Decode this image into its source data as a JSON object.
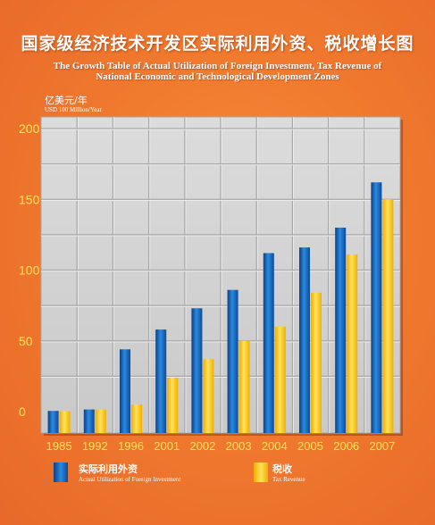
{
  "header": {
    "title_cn": "国家级经济技术开发区实际利用外资、税收增长图",
    "title_en_line1": "The Growth Table of Actual Utilization of Foreign Investment, Tax Revenue of",
    "title_en_line2": "National Economic and Technological Development Zones",
    "unit_cn": "亿美元/年",
    "unit_en": "USD 100 Million/Year"
  },
  "legend": [
    {
      "label_cn": "实际利用外资",
      "label_en": "Actual Utilization of Foreign Investment"
    },
    {
      "label_cn": "税收",
      "label_en": "Tax Revenue"
    }
  ],
  "colors": {
    "foreign_investment": "#1e6fc0",
    "tax_revenue": "#f5c518",
    "grid_cell": "#d2d2d2",
    "grid_line": "#a8a8a8",
    "tick_text": "#ffe45a"
  },
  "chart_data": {
    "type": "bar",
    "categories": [
      "1985",
      "1992",
      "1996",
      "2001",
      "2002",
      "2003",
      "2004",
      "2005",
      "2006",
      "2007"
    ],
    "series": [
      {
        "name": "实际利用外资",
        "values": [
          0.5,
          1.5,
          44,
          58,
          73,
          86,
          112,
          116,
          130,
          162
        ]
      },
      {
        "name": "税收",
        "values": [
          0.3,
          1.5,
          5,
          24,
          37,
          50,
          60,
          84,
          111,
          150
        ]
      }
    ],
    "yticks": [
      0,
      50,
      100,
      150,
      200
    ],
    "ylim": [
      0,
      200
    ],
    "grid": true
  }
}
